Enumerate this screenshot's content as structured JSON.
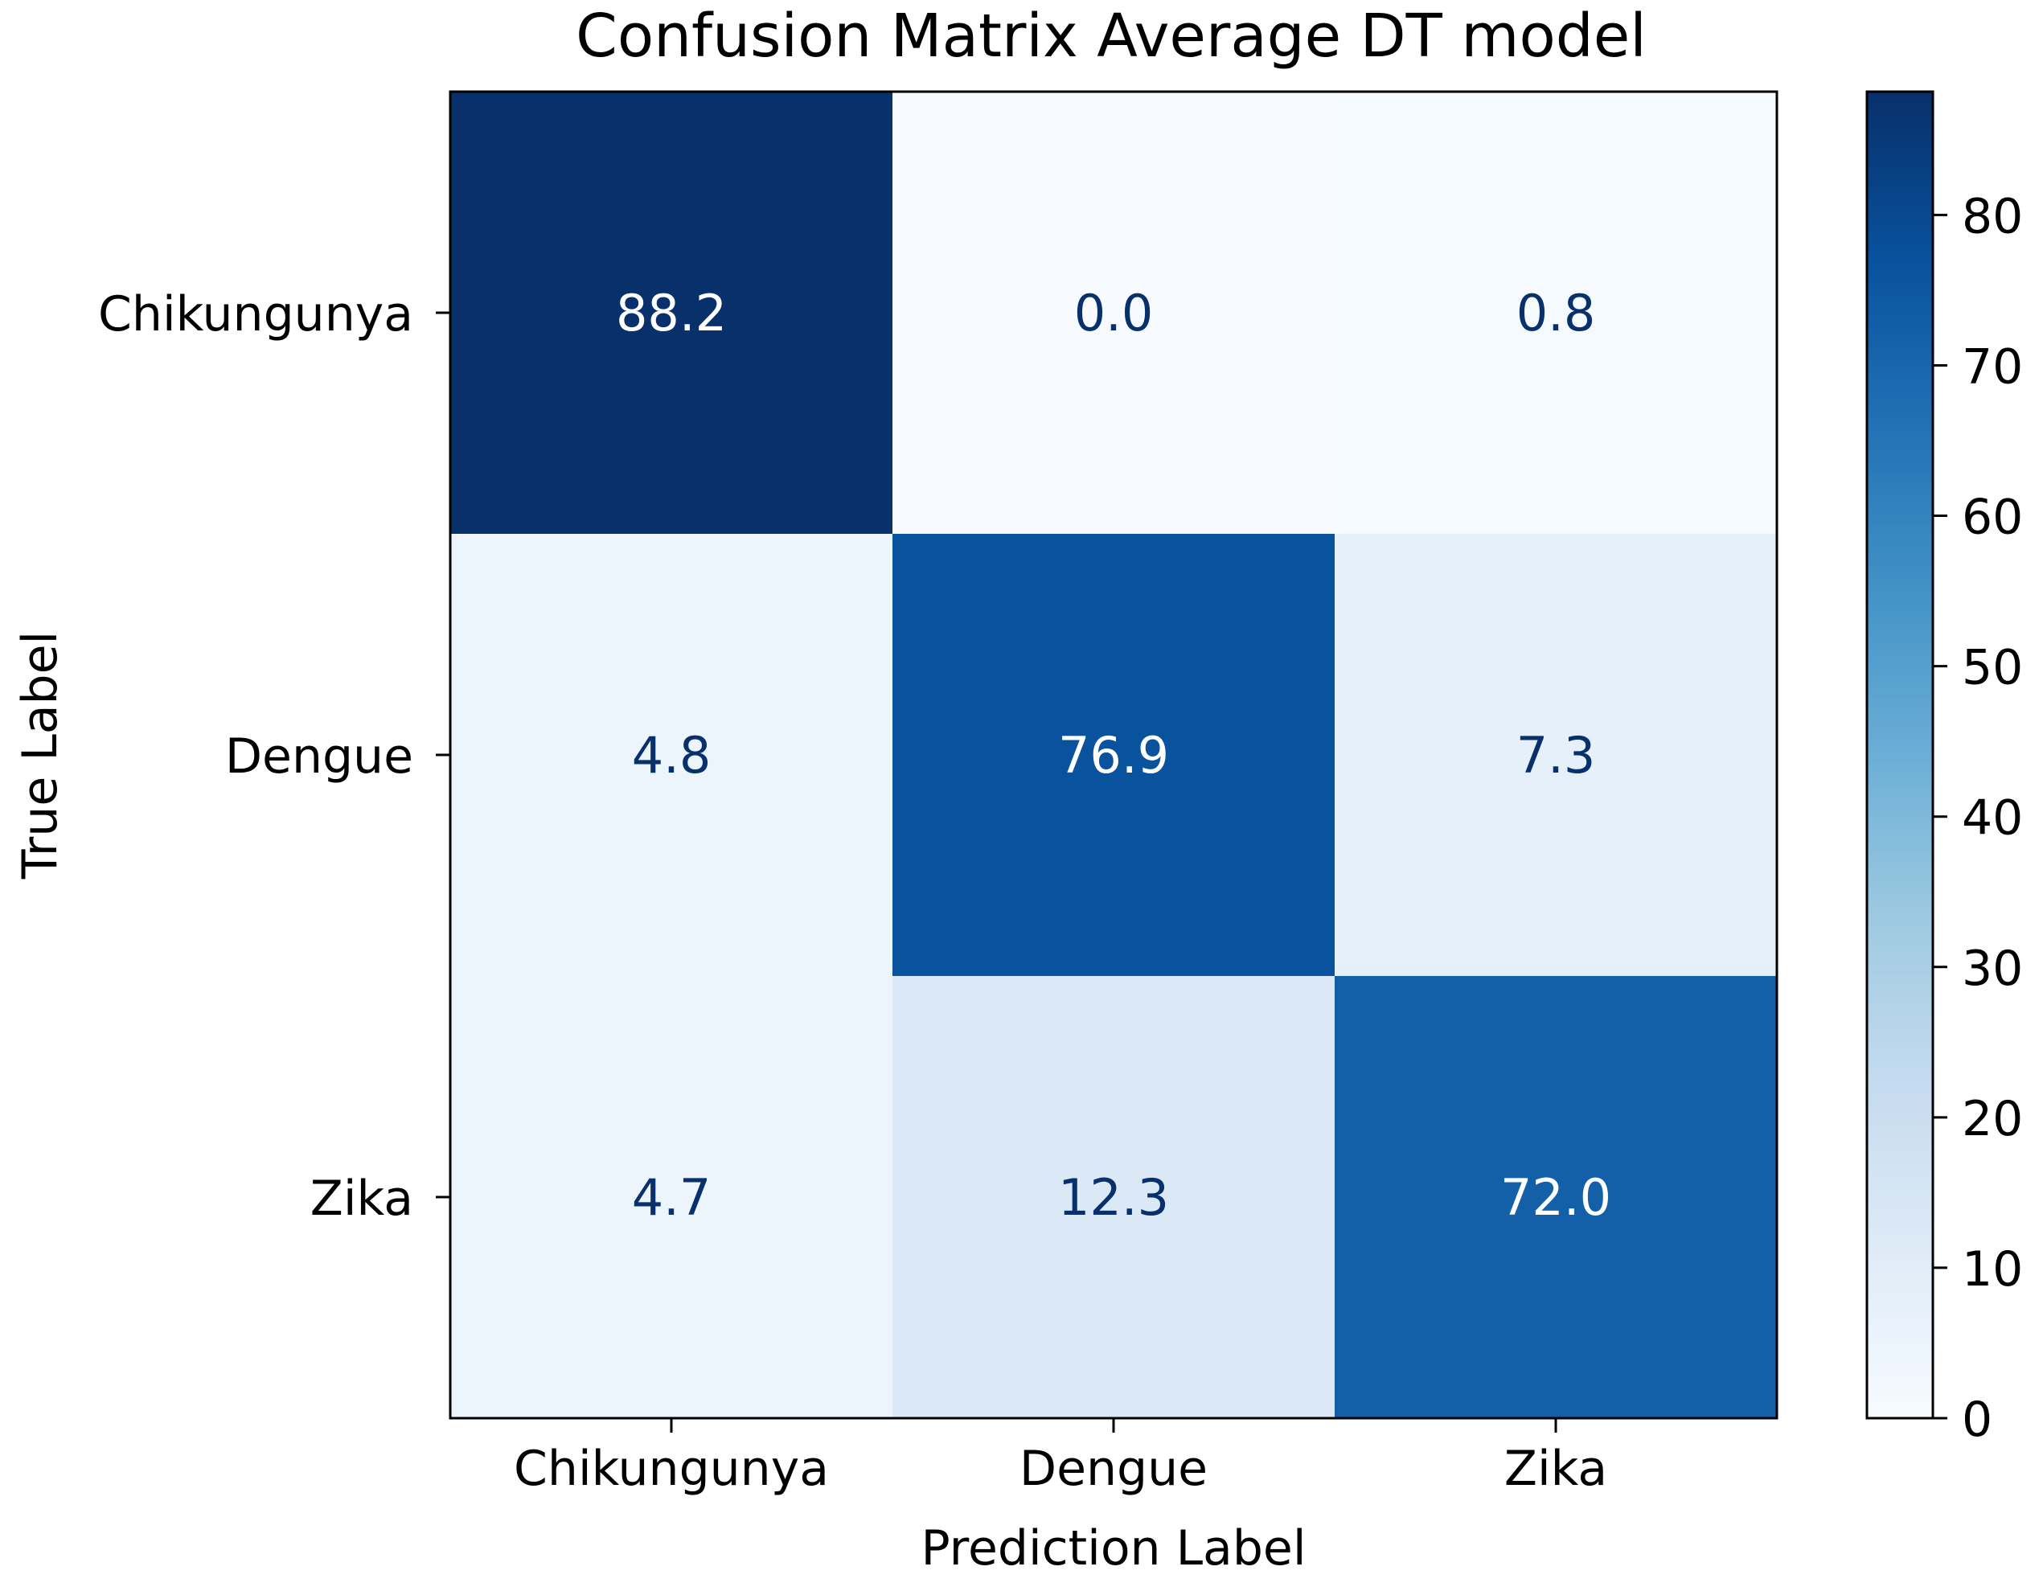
{
  "chart_data": {
    "type": "heatmap",
    "title": "Confusion Matrix Average DT model",
    "xlabel": "Prediction Label",
    "ylabel": "True Label",
    "x_categories": [
      "Chikungunya",
      "Dengue",
      "Zika"
    ],
    "y_categories": [
      "Chikungunya",
      "Dengue",
      "Zika"
    ],
    "values": [
      [
        88.2,
        0.0,
        0.8
      ],
      [
        4.8,
        76.9,
        7.3
      ],
      [
        4.7,
        12.3,
        72.0
      ]
    ],
    "value_labels": [
      [
        "88.2",
        "0.0",
        "0.8"
      ],
      [
        "4.8",
        "76.9",
        "7.3"
      ],
      [
        "4.7",
        "12.3",
        "72.0"
      ]
    ],
    "colorbar": {
      "min": 0,
      "max": 88.2,
      "ticks": [
        0,
        10,
        20,
        30,
        40,
        50,
        60,
        70,
        80
      ]
    },
    "colormap": "Blues",
    "colors": {
      "low": "#f7fbff",
      "high": "#08306b",
      "text_on_dark": "#ffffff",
      "text_on_light": "#08306b"
    }
  }
}
